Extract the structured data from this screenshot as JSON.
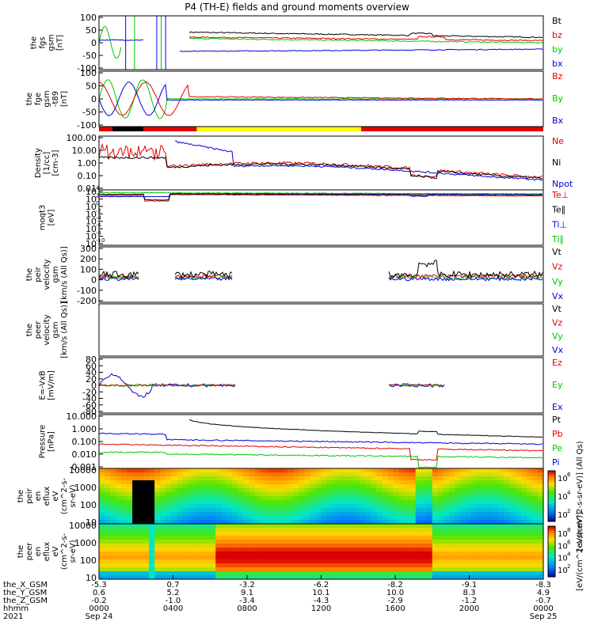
{
  "title": "P4 (TH-E) fields and ground moments overview",
  "colors": {
    "black": "#000000",
    "red": "#e00000",
    "green": "#00c800",
    "blue": "#0000e0",
    "yellow": "#ffff00"
  },
  "chart_data": {
    "type": "line",
    "panels": [
      {
        "id": "fgs",
        "ylabel": [
          "the",
          "fgs",
          "gsm",
          "[nT]"
        ],
        "ticks": [
          "100",
          "50",
          "0",
          "-50",
          "-100"
        ],
        "ylim": [
          -100,
          100
        ],
        "legend": [
          {
            "name": "Bt",
            "color": "black"
          },
          {
            "name": "bz",
            "color": "red"
          },
          {
            "name": "by",
            "color": "green"
          },
          {
            "name": "bx",
            "color": "blue"
          }
        ]
      },
      {
        "id": "fge",
        "ylabel": [
          "the",
          "fge",
          "gsm",
          "-t89",
          "[nT]"
        ],
        "ticks": [
          "100",
          "50",
          "0",
          "-50",
          "-100"
        ],
        "ylim": [
          -120,
          120
        ],
        "legend": [
          {
            "name": "Bz",
            "color": "red"
          },
          {
            "name": "By",
            "color": "green"
          },
          {
            "name": "Bx",
            "color": "blue"
          }
        ]
      },
      {
        "id": "density",
        "ylabel": [
          "Density",
          "[1/cc]",
          "[cm-3]"
        ],
        "ticks": [
          "100.00",
          "10.00",
          "1.00",
          "0.10",
          "0.01"
        ],
        "log": true,
        "legend": [
          {
            "name": "Ne",
            "color": "red"
          },
          {
            "name": "Ni",
            "color": "black"
          },
          {
            "name": "Npot",
            "color": "blue"
          }
        ]
      },
      {
        "id": "temp",
        "ylabel": [
          "moqt3",
          "[eV]"
        ],
        "ticks": [
          "10",
          "10",
          "10",
          "10",
          "10",
          "10",
          "10",
          "10"
        ],
        "tick_exponents": [
          "4",
          "2",
          "0",
          "-2",
          "-4",
          "-6",
          "-8",
          "-10"
        ],
        "log": true,
        "legend": [
          {
            "name": "Te⊥",
            "color": "red"
          },
          {
            "name": "Te∥",
            "color": "black"
          },
          {
            "name": "Ti⊥",
            "color": "blue"
          },
          {
            "name": "Ti∥",
            "color": "green"
          }
        ]
      },
      {
        "id": "peir_vel",
        "ylabel": [
          "the",
          "peir",
          "velocity",
          "gsm",
          "[km/s (All Qs)]"
        ],
        "ticks": [
          "300",
          "200",
          "100",
          "0",
          "-100",
          "-200"
        ],
        "ylim": [
          -200,
          300
        ],
        "legend": [
          {
            "name": "Vt",
            "color": "black"
          },
          {
            "name": "Vz",
            "color": "red"
          },
          {
            "name": "Vy",
            "color": "green"
          },
          {
            "name": "Vx",
            "color": "blue"
          }
        ]
      },
      {
        "id": "peer_vel",
        "ylabel": [
          "the",
          "peer",
          "velocity",
          "gsm",
          "[km/s (All Qs)]"
        ],
        "ticks": [],
        "legend": [
          {
            "name": "Vt",
            "color": "black"
          },
          {
            "name": "Vz",
            "color": "red"
          },
          {
            "name": "Vy",
            "color": "green"
          },
          {
            "name": "Vx",
            "color": "blue"
          }
        ]
      },
      {
        "id": "efield",
        "ylabel": [
          "E=-VxB",
          "[mV/m]"
        ],
        "ticks": [
          "80",
          "60",
          "40",
          "20",
          "0",
          "-20",
          "-40",
          "-60",
          "-80"
        ],
        "ylim": [
          -80,
          80
        ],
        "legend": [
          {
            "name": "Ez",
            "color": "red"
          },
          {
            "name": "Ey",
            "color": "green"
          },
          {
            "name": "Ex",
            "color": "blue"
          }
        ]
      },
      {
        "id": "pressure",
        "ylabel": [
          "Pressure",
          "[nPa]"
        ],
        "ticks": [
          "10.000",
          "1.000",
          "0.100",
          "0.010",
          "0.001"
        ],
        "log": true,
        "legend": [
          {
            "name": "Pt",
            "color": "black"
          },
          {
            "name": "Pb",
            "color": "red"
          },
          {
            "name": "Pe",
            "color": "green"
          },
          {
            "name": "Pi",
            "color": "blue"
          }
        ]
      },
      {
        "id": "peir_en",
        "ylabel": [
          "the",
          "peir",
          "en",
          "eflux",
          "eV",
          "(cm^2-s-",
          "sr-eV)"
        ],
        "ticks": [
          "10000",
          "1000",
          "100",
          "10"
        ],
        "log": true,
        "colorbar_ticks": [
          "6",
          "4",
          "2"
        ],
        "colorbar_label": "[eV/(cm^2-s-sr-eV)] (All Qs)"
      },
      {
        "id": "peer_en",
        "ylabel": [
          "the",
          "peer",
          "en",
          "eflux",
          "eV",
          "(cm^2-s-",
          "sr-eV)"
        ],
        "ticks": [
          "10000",
          "1000",
          "100",
          "10"
        ],
        "log": true,
        "colorbar_ticks": [
          "8",
          "6",
          "4",
          "2"
        ],
        "colorbar_label": "[eV/(cm^2-s-sr-eV)]"
      }
    ],
    "time_axis": {
      "row_labels": [
        "the_X_GSM",
        "the_Y_GSM",
        "the_Z_GSM",
        "hhmm",
        "2021"
      ],
      "ticks": [
        {
          "X": "-5.3",
          "Y": "0.6",
          "Z": "-0.2",
          "hhmm": "0000",
          "date": "Sep 24"
        },
        {
          "X": "0.7",
          "Y": "5.2",
          "Z": "-1.0",
          "hhmm": "0400",
          "date": ""
        },
        {
          "X": "-3.2",
          "Y": "9.1",
          "Z": "-3.4",
          "hhmm": "0800",
          "date": ""
        },
        {
          "X": "-6.2",
          "Y": "10.1",
          "Z": "-4.3",
          "hhmm": "1200",
          "date": ""
        },
        {
          "X": "-8.2",
          "Y": "10.0",
          "Z": "-2.9",
          "hhmm": "1600",
          "date": ""
        },
        {
          "X": "-9.1",
          "Y": "8.3",
          "Z": "-1.2",
          "hhmm": "2000",
          "date": ""
        },
        {
          "X": "-8.3",
          "Y": "4.9",
          "Z": "-0.7",
          "hhmm": "0000",
          "date": "Sep 25"
        }
      ]
    },
    "mode_bar": [
      {
        "from": 0.0,
        "to": 0.03,
        "color": "red"
      },
      {
        "from": 0.03,
        "to": 0.1,
        "color": "black"
      },
      {
        "from": 0.1,
        "to": 0.22,
        "color": "red"
      },
      {
        "from": 0.22,
        "to": 0.59,
        "color": "yellow"
      },
      {
        "from": 0.59,
        "to": 1.0,
        "color": "red"
      }
    ]
  }
}
